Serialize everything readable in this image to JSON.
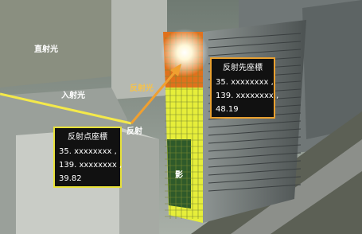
{
  "labels": {
    "direct_light": "直射光",
    "incident_light": "入射光",
    "reflected_light": "反射光",
    "reflection": "反射",
    "shadow": "影"
  },
  "reflection_point": {
    "title": "反射点座標",
    "lines": [
      "35. xxxxxxxx ,",
      "139. xxxxxxxx ,",
      "39.82"
    ]
  },
  "reflection_target": {
    "title": "反射先座標",
    "lines": [
      "35. xxxxxxxx ,",
      "139. xxxxxxxx ,",
      "48.19"
    ]
  }
}
